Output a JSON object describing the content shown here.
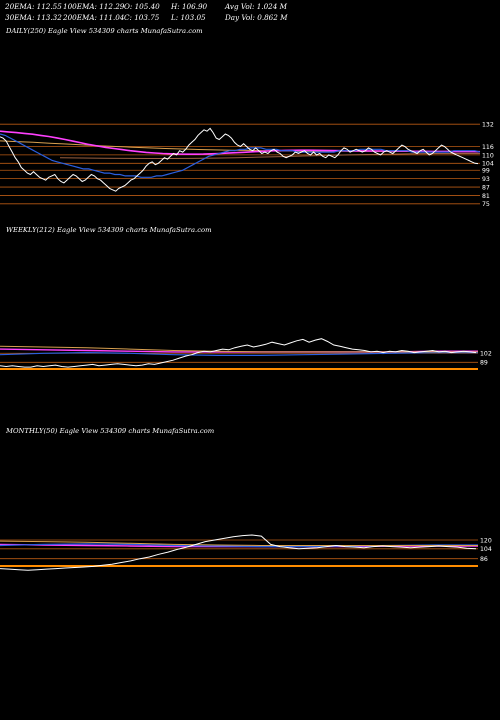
{
  "stats": {
    "row1": [
      "20EMA: 112.55",
      "100EMA: 112.29",
      "O: 105.40",
      "H: 106.90",
      "Avg Vol: 1.024  M"
    ],
    "row2": [
      "30EMA: 113.32",
      "200EMA: 111.04",
      "C: 103.75",
      "L: 103.05",
      "Day Vol: 0.862  M"
    ]
  },
  "panels": {
    "daily_label": "DAILY(250) Eagle   View  534309 charts MunafaSutra.com",
    "weekly_label": "WEEKLY(212) Eagle   View  534309 charts MunafaSutra.com",
    "monthly_label": "MONTHLY(50) Eagle   View  534309 charts MunafaSutra.com"
  },
  "colors": {
    "background": "#000000",
    "price": "#ffffff",
    "ema_short": "#2a5fe0",
    "ema_mid": "#ff40ff",
    "ema_long": "#d8a050",
    "ema_200": "#9a6040",
    "level_line": "#b85a14",
    "baseline": "#ff8c00"
  },
  "chart_data": [
    {
      "type": "line",
      "name": "daily",
      "levels": [
        132,
        116,
        110,
        104,
        99,
        93,
        87,
        81,
        75
      ],
      "ylim": [
        72,
        140
      ],
      "price": [
        123,
        122,
        120,
        116,
        112,
        108,
        105,
        101,
        99,
        97,
        96,
        98,
        96,
        94,
        93,
        92,
        94,
        95,
        96,
        93,
        91,
        90,
        92,
        94,
        96,
        95,
        93,
        91,
        92,
        94,
        96,
        95,
        93,
        92,
        90,
        88,
        86,
        85,
        84,
        86,
        87,
        88,
        90,
        92,
        93,
        95,
        97,
        99,
        102,
        104,
        105,
        103,
        104,
        106,
        108,
        107,
        109,
        111,
        110,
        113,
        112,
        114,
        117,
        119,
        121,
        124,
        126,
        128,
        127,
        129,
        126,
        122,
        121,
        123,
        125,
        124,
        122,
        119,
        117,
        116,
        118,
        116,
        114,
        113,
        115,
        113,
        111,
        112,
        111,
        113,
        114,
        112,
        111,
        109,
        108,
        109,
        110,
        112,
        111,
        112,
        113,
        111,
        110,
        112,
        110,
        111,
        109,
        108,
        110,
        109,
        108,
        110,
        113,
        115,
        114,
        112,
        113,
        114,
        113,
        112,
        113,
        115,
        114,
        112,
        111,
        110,
        112,
        113,
        112,
        111,
        113,
        115,
        117,
        116,
        114,
        113,
        112,
        111,
        113,
        114,
        112,
        110,
        111,
        113,
        115,
        117,
        116,
        114,
        112,
        111,
        110,
        109,
        108,
        107,
        106,
        105,
        104,
        103.75
      ],
      "ema_short": [
        125,
        124,
        122,
        120,
        118,
        116,
        114,
        112,
        110,
        108,
        106,
        105,
        104,
        103,
        102,
        101,
        100,
        100,
        99,
        98,
        97,
        97,
        96,
        96,
        95,
        95,
        95,
        94,
        94,
        94,
        95,
        95,
        96,
        97,
        98,
        99,
        101,
        103,
        105,
        107,
        109,
        110,
        111,
        112,
        113,
        113,
        114,
        114,
        115,
        115,
        115,
        114,
        114,
        114,
        113,
        113,
        113,
        112,
        112,
        112,
        112,
        112,
        112,
        112,
        112,
        113,
        113,
        113,
        113,
        114,
        114,
        114,
        114,
        114,
        113,
        113,
        113,
        113,
        113,
        112,
        112,
        112,
        112,
        112,
        112,
        112,
        112,
        113,
        113,
        113,
        113,
        113,
        112
      ],
      "ema_mid": [
        127,
        126.5,
        126,
        125.4,
        124.8,
        124,
        123.2,
        122.2,
        121,
        119.8,
        118.6,
        117.4,
        116.4,
        115.4,
        114.6,
        113.8,
        113,
        112.4,
        111.8,
        111.4,
        111,
        110.8,
        110.6,
        110.5,
        110.5,
        110.6,
        110.8,
        111,
        111.3,
        111.6,
        111.9,
        112.2,
        112.5,
        112.8,
        113,
        113.2,
        113.3,
        113.4,
        113.4,
        113.3,
        113.2,
        113.1,
        113,
        112.9,
        112.9,
        112.9,
        112.8,
        112.8,
        112.8,
        112.7,
        112.7,
        112.6,
        112.6,
        112.5,
        112.5,
        112.5,
        112.4,
        112.4,
        112.4,
        112.3
      ],
      "ema_long": [
        120,
        119.5,
        119,
        118.4,
        117.8,
        117.2,
        116.6,
        116,
        115.5,
        115,
        114.6,
        114.2,
        113.9,
        113.6,
        113.4,
        113.2,
        113,
        112.9,
        112.8,
        112.7,
        112.6,
        112.6,
        112.6,
        112.5,
        112.5,
        112.5,
        112.4,
        112.4,
        112.3,
        112.3
      ],
      "ema_200": [
        108,
        107.8,
        107.6,
        107.5,
        107.4,
        107.4,
        107.5,
        107.7,
        108,
        108.4,
        108.8,
        109.2,
        109.6,
        110,
        110.3,
        110.6,
        110.8,
        111,
        111,
        111
      ]
    },
    {
      "type": "line",
      "name": "weekly",
      "levels": [
        102,
        89
      ],
      "ylim": [
        75,
        150
      ],
      "price": [
        84,
        83,
        84,
        83,
        82,
        82,
        84,
        83,
        84,
        85,
        83,
        82,
        83,
        84,
        85,
        86,
        84,
        85,
        86,
        87,
        86,
        85,
        84,
        85,
        87,
        86,
        88,
        90,
        92,
        95,
        98,
        100,
        103,
        105,
        104,
        106,
        108,
        107,
        110,
        112,
        114,
        111,
        113,
        115,
        118,
        116,
        114,
        117,
        120,
        122,
        118,
        121,
        123,
        119,
        114,
        112,
        110,
        108,
        107,
        106,
        104,
        105,
        103,
        105,
        104,
        106,
        105,
        103,
        104,
        105,
        106,
        104,
        105,
        103,
        104,
        105,
        104,
        103
      ]
    },
    {
      "type": "line",
      "name": "monthly",
      "levels": [
        120,
        104,
        86
      ],
      "ylim": [
        60,
        160
      ],
      "price": [
        68,
        67,
        66,
        65,
        66,
        67,
        68,
        69,
        70,
        71,
        72,
        74,
        76,
        79,
        82,
        86,
        89,
        94,
        98,
        103,
        107,
        112,
        117,
        120,
        123,
        126,
        128,
        129,
        127,
        112,
        108,
        106,
        104,
        105,
        106,
        108,
        110,
        108,
        107,
        106,
        108,
        109,
        108,
        107,
        106,
        107,
        108,
        109,
        108,
        107,
        105,
        104
      ]
    }
  ]
}
